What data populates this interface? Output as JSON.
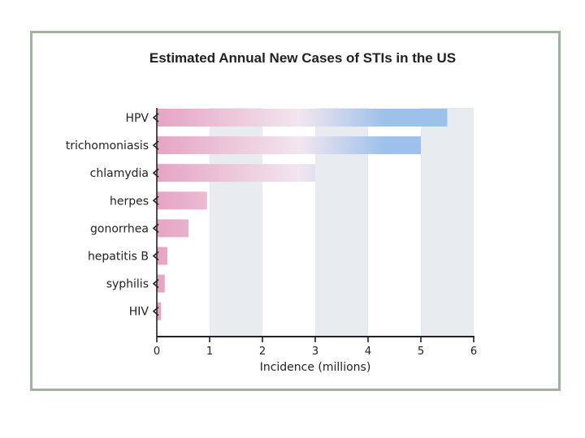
{
  "chart_data": {
    "type": "bar",
    "orientation": "horizontal",
    "title": "Estimated Annual New Cases of STIs in the US",
    "xlabel": "Incidence (millions)",
    "ylabel": "",
    "xlim": [
      0,
      6
    ],
    "x_ticks": [
      0,
      1,
      2,
      3,
      4,
      5,
      6
    ],
    "categories": [
      "HPV",
      "trichomoniasis",
      "chlamydia",
      "herpes",
      "gonorrhea",
      "hepatitis B",
      "syphilis",
      "HIV"
    ],
    "values": [
      5.5,
      5.0,
      3.0,
      0.95,
      0.6,
      0.2,
      0.15,
      0.08
    ],
    "grid": "alternating vertical bands",
    "colors": {
      "bar_start": "#e6a4c2",
      "bar_mid": "#f2e6f0",
      "bar_end": "#9dc1ea",
      "band": "#e8ecf0",
      "axis": "#222222",
      "frame": "#9fb39f"
    }
  }
}
